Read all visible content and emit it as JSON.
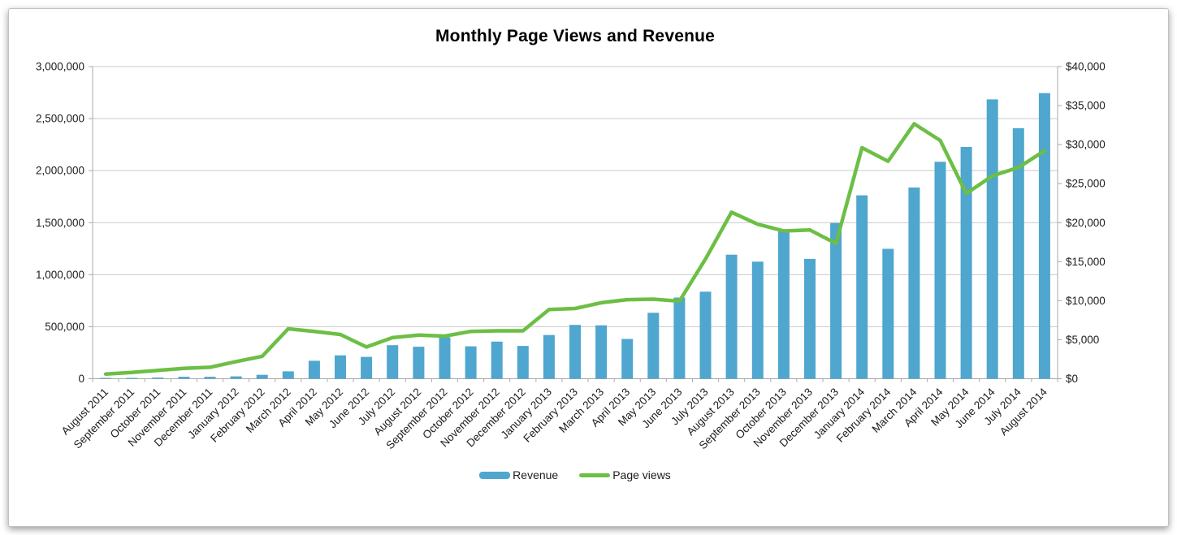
{
  "chart_data": {
    "type": "combo",
    "title": "Monthly Page Views and Revenue",
    "categories": [
      "August 2011",
      "September 2011",
      "October 2011",
      "November 2011",
      "December 2011",
      "January 2012",
      "February 2012",
      "March 2012",
      "April 2012",
      "May 2012",
      "June 2012",
      "July 2012",
      "August 2012",
      "September 2012",
      "October 2012",
      "November 2012",
      "December 2012",
      "January 2013",
      "February 2013",
      "March 2013",
      "April 2013",
      "May 2013",
      "June 2013",
      "July 2013",
      "August 2013",
      "September 2013",
      "October 2013",
      "November 2013",
      "December 2013",
      "January 2014",
      "February 2014",
      "March 2014",
      "April 2014",
      "May 2014",
      "June 2014",
      "July 2014",
      "August 2014"
    ],
    "series": [
      {
        "name": "Revenue",
        "type": "bar",
        "axis": "right",
        "color": "#4FA6CE",
        "values": [
          100,
          100,
          150,
          250,
          250,
          300,
          500,
          950,
          2300,
          3000,
          2800,
          4300,
          4100,
          5300,
          4150,
          4750,
          4200,
          5600,
          6900,
          6850,
          5100,
          8450,
          10400,
          11150,
          15900,
          15000,
          18950,
          15350,
          19950,
          23500,
          16650,
          24500,
          27800,
          29700,
          35800,
          32100,
          36600
        ]
      },
      {
        "name": "Page views",
        "type": "line",
        "axis": "left",
        "color": "#6CBF44",
        "values": [
          45000,
          60000,
          80000,
          100000,
          110000,
          165000,
          215000,
          480000,
          455000,
          425000,
          305000,
          395000,
          420000,
          410000,
          455000,
          460000,
          460000,
          665000,
          675000,
          730000,
          760000,
          765000,
          745000,
          1150000,
          1600000,
          1485000,
          1420000,
          1430000,
          1300000,
          2220000,
          2090000,
          2450000,
          2290000,
          1780000,
          1950000,
          2030000,
          2190000
        ]
      }
    ],
    "y_left": {
      "min": 0,
      "max": 3000000,
      "tick_step": 500000,
      "tick_labels": [
        "0",
        "500,000",
        "1,000,000",
        "1,500,000",
        "2,000,000",
        "2,500,000",
        "3,000,000"
      ]
    },
    "y_right": {
      "min": 0,
      "max": 40000,
      "tick_step": 5000,
      "tick_labels": [
        "$0",
        "$5,000",
        "$10,000",
        "$15,000",
        "$20,000",
        "$25,000",
        "$30,000",
        "$35,000",
        "$40,000"
      ]
    },
    "legend_position": "bottom",
    "grid": "horizontal",
    "x_label_rotation_deg": -45
  }
}
